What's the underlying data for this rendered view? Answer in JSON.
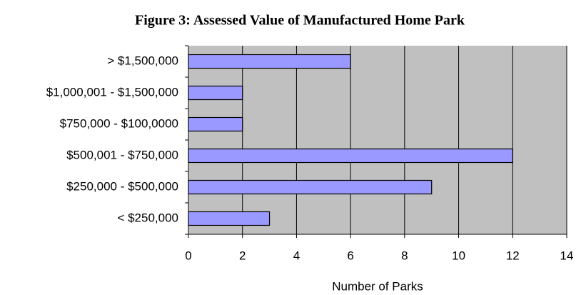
{
  "chart_data": {
    "type": "bar",
    "orientation": "horizontal",
    "title": "Figure 3: Assessed Value of Manufactured Home Park",
    "x_label": "Number of Parks",
    "categories": [
      "> $1,500,000",
      "$1,000,001 - $1,500,000",
      "$750,000 - $100,0000",
      "$500,001 - $750,000",
      "$250,000 - $500,000",
      "< $250,000"
    ],
    "values": [
      6,
      2,
      2,
      12,
      9,
      3
    ],
    "color": "#9999ff",
    "xlim": [
      0,
      14
    ],
    "xticks": [
      0,
      2,
      4,
      6,
      8,
      10,
      12,
      14
    ],
    "grid": true
  }
}
